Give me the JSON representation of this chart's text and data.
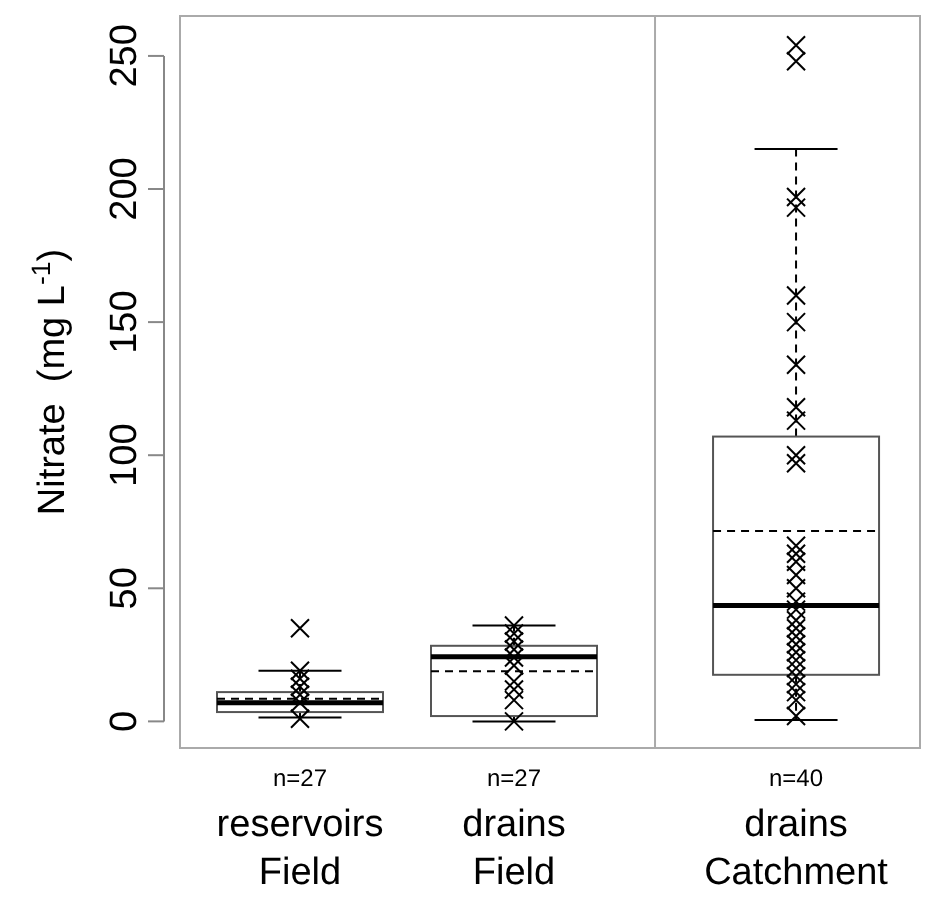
{
  "chart_data": {
    "type": "box",
    "ylabel": "Nitrate  (mg L$^{-1}$)",
    "categories": [
      "reservoirs\nField",
      "drains\nField",
      "drains\nCatchment"
    ],
    "boxes": [
      {
        "low": 1.5,
        "q1": 3.5,
        "median": 7,
        "q3": 11,
        "high": 19,
        "mean": 8.5,
        "outliers": [
          35
        ]
      },
      {
        "low": 0,
        "q1": 2,
        "median": 24.3,
        "q3": 28.4,
        "high": 36,
        "mean": 18.8
      },
      {
        "low": 0.5,
        "q1": 17.5,
        "median": 43.5,
        "q3": 107,
        "high": 215,
        "mean": 71.5,
        "outliers": [
          248,
          254
        ]
      }
    ],
    "series": [
      {
        "type": "scatter",
        "color": "#000000",
        "marker": "cross",
        "x": [
          "reservoirs\nField",
          "reservoirs\nField",
          "reservoirs\nField",
          "reservoirs\nField",
          "reservoirs\nField",
          "reservoirs\nField"
        ],
        "values": [
          19,
          16,
          13,
          10,
          7,
          1
        ]
      },
      {
        "type": "scatter",
        "color": "#000000",
        "marker": "cross",
        "x": [
          "drains\nField",
          "drains\nField",
          "drains\nField",
          "drains\nField",
          "drains\nField",
          "drains\nField",
          "drains\nField",
          "drains\nField",
          "drains\nField",
          "drains\nField"
        ],
        "values": [
          36,
          33,
          30,
          27,
          24,
          21,
          15,
          12,
          8,
          0
        ]
      },
      {
        "type": "scatter",
        "color": "#000000",
        "marker": "cross",
        "x": [
          "drains\nCatchment",
          "drains\nCatchment",
          "drains\nCatchment",
          "drains\nCatchment",
          "drains\nCatchment",
          "drains\nCatchment",
          "drains\nCatchment",
          "drains\nCatchment",
          "drains\nCatchment",
          "drains\nCatchment",
          "drains\nCatchment",
          "drains\nCatchment",
          "drains\nCatchment",
          "drains\nCatchment",
          "drains\nCatchment",
          "drains\nCatchment",
          "drains\nCatchment",
          "drains\nCatchment",
          "drains\nCatchment",
          "drains\nCatchment",
          "drains\nCatchment",
          "drains\nCatchment",
          "drains\nCatchment",
          "drains\nCatchment",
          "drains\nCatchment",
          "drains\nCatchment",
          "drains\nCatchment",
          "drains\nCatchment"
        ],
        "values": [
          197,
          193,
          160,
          150,
          134,
          118,
          113,
          100,
          97,
          66,
          63,
          60,
          55,
          50,
          45,
          42,
          38,
          35,
          32,
          29,
          26,
          23,
          20,
          17,
          14,
          11,
          8,
          2
        ]
      }
    ],
    "annotations": [
      "n=27",
      "n=27",
      "n=40"
    ],
    "ylim": [
      -10,
      265
    ],
    "yticks": [
      0,
      50,
      100,
      150,
      200,
      250
    ],
    "grid": false
  }
}
